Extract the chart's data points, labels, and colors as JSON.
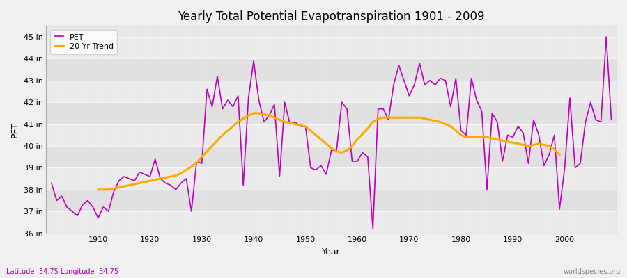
{
  "title": "Yearly Total Potential Evapotranspiration 1901 - 2009",
  "xlabel": "Year",
  "ylabel": "PET",
  "subtitle_left": "Latitude -34.75 Longitude -54.75",
  "subtitle_right": "worldspecies.org",
  "background_color": "#f0f0f0",
  "plot_bg_color": "#e8e8e8",
  "band_color_light": "#ebebeb",
  "band_color_dark": "#e0e0e0",
  "pet_color": "#bb00bb",
  "trend_color": "#ffaa00",
  "ylim": [
    36,
    45.5
  ],
  "yticks": [
    36,
    37,
    38,
    39,
    40,
    41,
    42,
    43,
    44,
    45
  ],
  "ytick_labels": [
    "36 in",
    "37 in",
    "38 in",
    "39 in",
    "40 in",
    "41 in",
    "42 in",
    "43 in",
    "44 in",
    "45 in"
  ],
  "years": [
    1901,
    1902,
    1903,
    1904,
    1905,
    1906,
    1907,
    1908,
    1909,
    1910,
    1911,
    1912,
    1913,
    1914,
    1915,
    1916,
    1917,
    1918,
    1919,
    1920,
    1921,
    1922,
    1923,
    1924,
    1925,
    1926,
    1927,
    1928,
    1929,
    1930,
    1931,
    1932,
    1933,
    1934,
    1935,
    1936,
    1937,
    1938,
    1939,
    1940,
    1941,
    1942,
    1943,
    1944,
    1945,
    1946,
    1947,
    1948,
    1949,
    1950,
    1951,
    1952,
    1953,
    1954,
    1955,
    1956,
    1957,
    1958,
    1959,
    1960,
    1961,
    1962,
    1963,
    1964,
    1965,
    1966,
    1967,
    1968,
    1969,
    1970,
    1971,
    1972,
    1973,
    1974,
    1975,
    1976,
    1977,
    1978,
    1979,
    1980,
    1981,
    1982,
    1983,
    1984,
    1985,
    1986,
    1987,
    1988,
    1989,
    1990,
    1991,
    1992,
    1993,
    1994,
    1995,
    1996,
    1997,
    1998,
    1999,
    2000,
    2001,
    2002,
    2003,
    2004,
    2005,
    2006,
    2007,
    2008,
    2009
  ],
  "pet": [
    38.3,
    37.5,
    37.7,
    37.2,
    37.0,
    36.8,
    37.3,
    37.5,
    37.2,
    36.7,
    37.2,
    37.0,
    37.9,
    38.4,
    38.6,
    38.5,
    38.4,
    38.8,
    38.7,
    38.6,
    39.4,
    38.5,
    38.3,
    38.2,
    38.0,
    38.3,
    38.5,
    37.0,
    39.3,
    39.2,
    42.6,
    41.8,
    43.2,
    41.7,
    42.1,
    41.8,
    42.3,
    38.2,
    42.2,
    43.9,
    42.1,
    41.1,
    41.4,
    41.9,
    38.6,
    42.0,
    41.0,
    41.1,
    40.9,
    40.9,
    39.0,
    38.9,
    39.1,
    38.7,
    39.8,
    39.8,
    42.0,
    41.7,
    39.3,
    39.3,
    39.7,
    39.5,
    36.2,
    41.7,
    41.7,
    41.2,
    42.8,
    43.7,
    43.0,
    42.3,
    42.8,
    43.8,
    42.8,
    43.0,
    42.8,
    43.1,
    43.0,
    41.8,
    43.1,
    40.7,
    40.5,
    43.1,
    42.1,
    41.6,
    38.0,
    41.5,
    41.1,
    39.3,
    40.5,
    40.4,
    40.9,
    40.6,
    39.2,
    41.2,
    40.5,
    39.1,
    39.6,
    40.5,
    37.1,
    39.0,
    42.2,
    39.0,
    39.2,
    41.1,
    42.0,
    41.2,
    41.1,
    45.0,
    41.2
  ],
  "trend": [
    null,
    null,
    null,
    null,
    null,
    null,
    null,
    null,
    null,
    38.0,
    38.0,
    38.0,
    38.05,
    38.1,
    38.15,
    38.2,
    38.25,
    38.3,
    38.35,
    38.4,
    38.45,
    38.5,
    38.55,
    38.6,
    38.65,
    38.75,
    38.9,
    39.05,
    39.25,
    39.5,
    39.75,
    40.0,
    40.25,
    40.5,
    40.7,
    40.9,
    41.1,
    41.25,
    41.4,
    41.5,
    41.5,
    41.45,
    41.4,
    41.3,
    41.2,
    41.1,
    41.05,
    41.0,
    40.95,
    40.9,
    40.7,
    40.5,
    40.3,
    40.1,
    39.9,
    39.75,
    39.7,
    39.8,
    40.0,
    40.3,
    40.55,
    40.8,
    41.1,
    41.25,
    41.3,
    41.3,
    41.3,
    41.3,
    41.3,
    41.3,
    41.3,
    41.3,
    41.25,
    41.2,
    41.15,
    41.1,
    41.0,
    40.9,
    40.7,
    40.5,
    40.4,
    40.4,
    40.4,
    40.4,
    40.4,
    40.35,
    40.3,
    40.25,
    40.2,
    40.15,
    40.1,
    40.05,
    40.0,
    40.05,
    40.1,
    40.05,
    40.0,
    39.85,
    39.6,
    null,
    null,
    null,
    null,
    null,
    null,
    null,
    null,
    null,
    null
  ]
}
